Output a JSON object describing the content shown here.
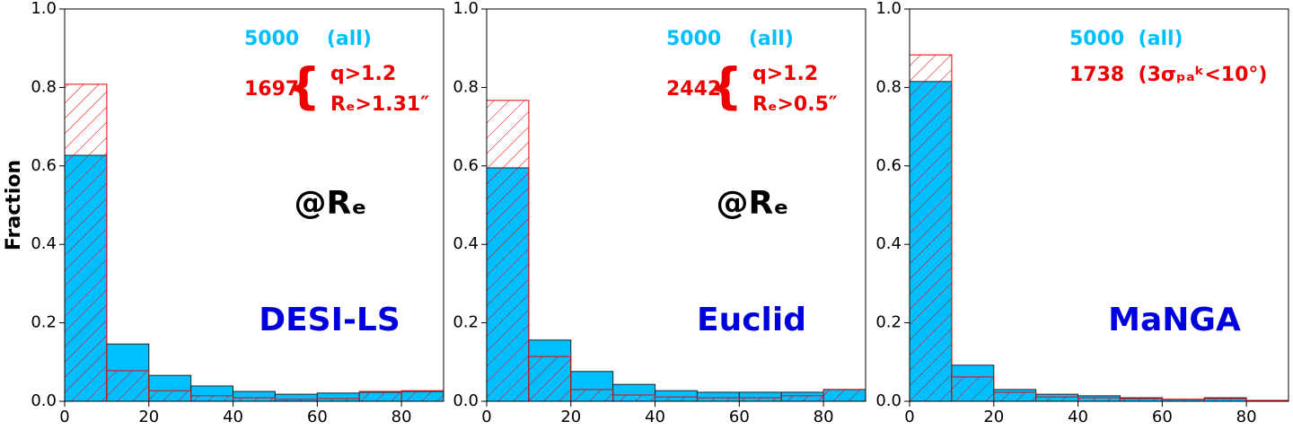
{
  "chart_data": [
    {
      "type": "histogram",
      "ylabel": "Fraction",
      "annotation": "@Rₑ",
      "survey": "DESI-LS",
      "bins": [
        0,
        10,
        20,
        30,
        40,
        50,
        60,
        70,
        80,
        90
      ],
      "xlim": [
        0,
        90
      ],
      "xticks": [
        0,
        20,
        40,
        60,
        80
      ],
      "ylim": [
        0,
        1
      ],
      "yticks": [
        {
          "value": 0,
          "label": "0.0"
        },
        {
          "value": 0.2,
          "label": "0.2"
        },
        {
          "value": 0.4,
          "label": "0.4"
        },
        {
          "value": 0.6,
          "label": "0.6"
        },
        {
          "value": 0.8,
          "label": "0.8"
        },
        {
          "value": 1,
          "label": "1.0"
        }
      ],
      "series": [
        {
          "name": "5000    (all)",
          "color": "#00bfff",
          "hatch": false,
          "values": [
            0.627,
            0.146,
            0.066,
            0.039,
            0.025,
            0.018,
            0.021,
            0.023,
            0.025
          ]
        },
        {
          "name": "1697",
          "conditions": [
            "q>1.2",
            "Rₑ>1.31″"
          ],
          "color": "#ee0000",
          "hatch": true,
          "values": [
            0.808,
            0.078,
            0.027,
            0.014,
            0.009,
            0.005,
            0.007,
            0.025,
            0.027
          ]
        }
      ]
    },
    {
      "type": "histogram",
      "annotation": "@Rₑ",
      "survey": "Euclid",
      "bins": [
        0,
        10,
        20,
        30,
        40,
        50,
        60,
        70,
        80,
        90
      ],
      "xlim": [
        0,
        90
      ],
      "xticks": [
        0,
        20,
        40,
        60,
        80
      ],
      "ylim": [
        0,
        1
      ],
      "yticks": [
        {
          "value": 0,
          "label": "0.0"
        },
        {
          "value": 0.2,
          "label": "0.2"
        },
        {
          "value": 0.4,
          "label": "0.4"
        },
        {
          "value": 0.6,
          "label": "0.6"
        },
        {
          "value": 0.8,
          "label": "0.8"
        },
        {
          "value": 1,
          "label": "1.0"
        }
      ],
      "series": [
        {
          "name": "5000    (all)",
          "color": "#00bfff",
          "hatch": false,
          "values": [
            0.595,
            0.156,
            0.076,
            0.043,
            0.027,
            0.023,
            0.023,
            0.023,
            0.03
          ]
        },
        {
          "name": "2442",
          "conditions": [
            "q>1.2",
            "Rₑ>0.5″"
          ],
          "color": "#ee0000",
          "hatch": true,
          "values": [
            0.767,
            0.114,
            0.03,
            0.016,
            0.011,
            0.009,
            0.009,
            0.014,
            0.03
          ]
        }
      ]
    },
    {
      "type": "histogram",
      "survey": "MaNGA",
      "bins": [
        0,
        10,
        20,
        30,
        40,
        50,
        60,
        70,
        80,
        90
      ],
      "xlim": [
        0,
        90
      ],
      "xticks": [
        0,
        20,
        40,
        60,
        80
      ],
      "ylim": [
        0,
        1
      ],
      "yticks": [
        {
          "value": 0,
          "label": "0.0"
        },
        {
          "value": 0.2,
          "label": "0.2"
        },
        {
          "value": 0.4,
          "label": "0.4"
        },
        {
          "value": 0.6,
          "label": "0.6"
        },
        {
          "value": 0.8,
          "label": "0.8"
        },
        {
          "value": 1,
          "label": "1.0"
        }
      ],
      "series": [
        {
          "name": "5000  (all)",
          "color": "#00bfff",
          "hatch": false,
          "values": [
            0.815,
            0.092,
            0.03,
            0.018,
            0.014,
            0.009,
            0.005,
            0.009,
            0.002
          ]
        },
        {
          "name": "1738  (3σₚₐᵏ<10°)",
          "color": "#ee0000",
          "hatch": true,
          "values": [
            0.883,
            0.062,
            0.023,
            0.011,
            0.009,
            0.007,
            0.005,
            0.007,
            0.002
          ]
        }
      ]
    }
  ]
}
